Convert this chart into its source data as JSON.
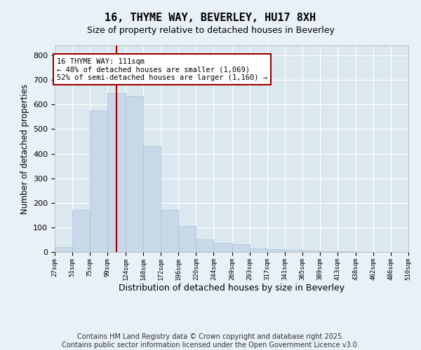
{
  "title": "16, THYME WAY, BEVERLEY, HU17 8XH",
  "subtitle": "Size of property relative to detached houses in Beverley",
  "xlabel": "Distribution of detached houses by size in Beverley",
  "ylabel": "Number of detached properties",
  "bar_color": "#c8d8e8",
  "bar_edge_color": "#a8c0d8",
  "background_color": "#dce8f0",
  "fig_background_color": "#e8f0f8",
  "grid_color": "#ffffff",
  "vline_x": 111,
  "vline_color": "#990000",
  "annotation_text": "16 THYME WAY: 111sqm\n← 48% of detached houses are smaller (1,069)\n52% of semi-detached houses are larger (1,160) →",
  "annotation_box_color": "#990000",
  "bins": [
    27,
    51,
    75,
    99,
    124,
    148,
    172,
    196,
    220,
    244,
    269,
    293,
    317,
    341,
    365,
    389,
    413,
    438,
    462,
    486,
    510
  ],
  "counts": [
    20,
    170,
    575,
    645,
    635,
    430,
    172,
    105,
    50,
    38,
    30,
    15,
    12,
    8,
    5,
    3,
    2,
    1,
    1,
    0
  ],
  "ylim": [
    0,
    840
  ],
  "yticks": [
    0,
    100,
    200,
    300,
    400,
    500,
    600,
    700,
    800
  ],
  "footer": "Contains HM Land Registry data © Crown copyright and database right 2025.\nContains public sector information licensed under the Open Government Licence v3.0.",
  "footer_fontsize": 7.0
}
